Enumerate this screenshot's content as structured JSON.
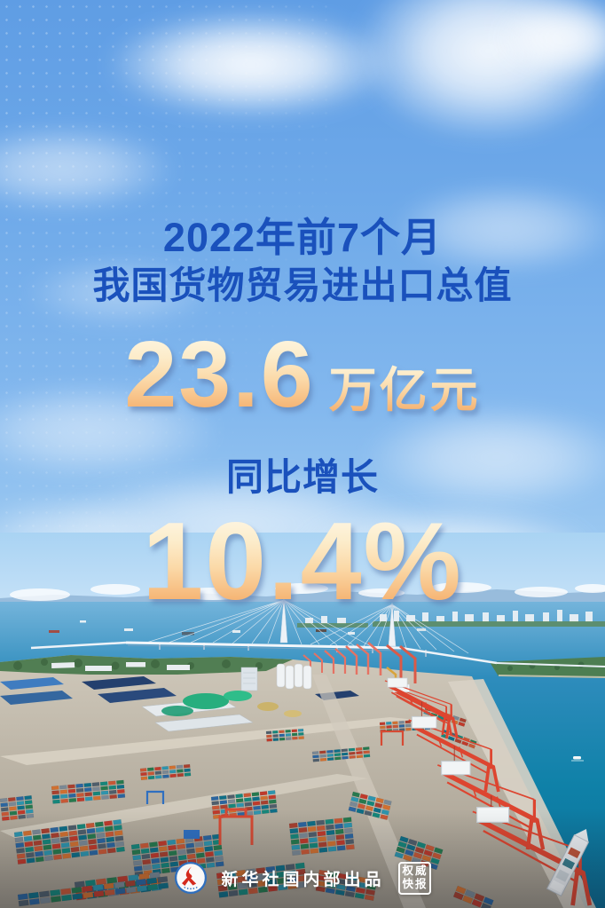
{
  "poster": {
    "title_line1": "2022年前7个月",
    "title_line2": "我国货物贸易进出口总值",
    "stat_value": "23.6",
    "stat_unit": "万亿元",
    "growth_label": "同比增长",
    "growth_value": "10.4%"
  },
  "footer": {
    "publisher": "新华社国内部出品",
    "badge_line1": "权威",
    "badge_line2": "快报"
  },
  "colors": {
    "title-blue": "#1a51bc",
    "gold-top": "#fef7e6",
    "gold-mid": "#fbd9a8",
    "gold-bottom": "#f3a660",
    "sky-top": "#5f9de4",
    "sky-bottom": "#a7d1f3",
    "crane-red": "#dd4530",
    "sea-teal": "#1182aa",
    "footer-white": "#ffffff"
  }
}
